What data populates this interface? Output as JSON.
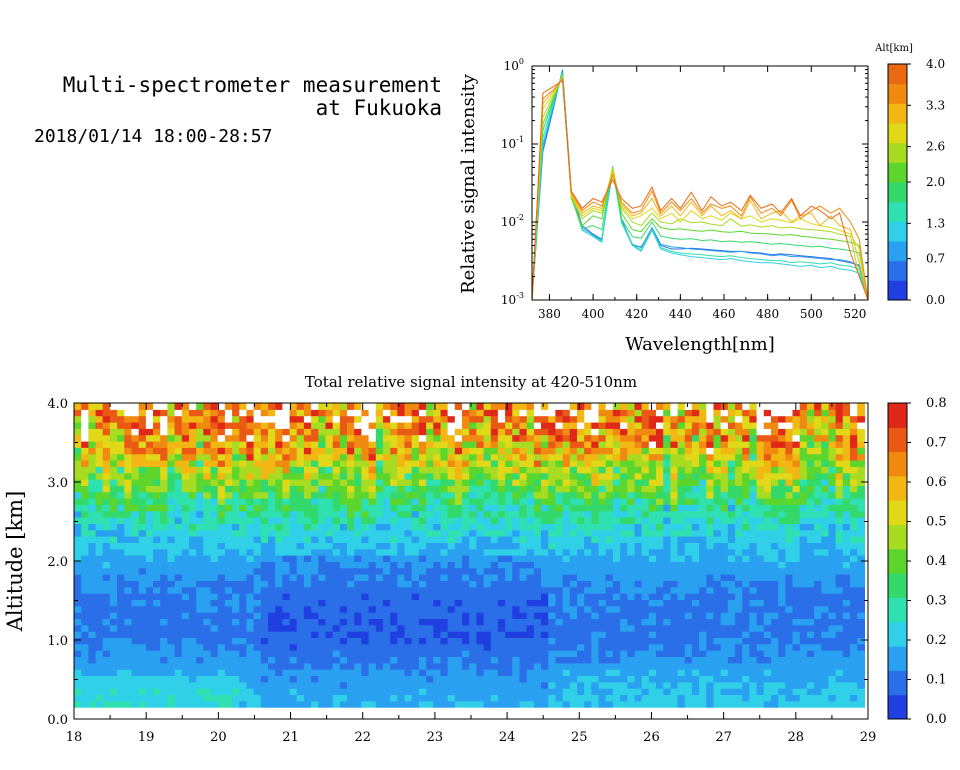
{
  "header": {
    "title_line1": "Multi-spectrometer measurement",
    "title_line2": "at Fukuoka",
    "date_range": "2018/01/14 18:00-28:57"
  },
  "colors": {
    "colorscale": [
      "#1f3fe0",
      "#2a6fe8",
      "#2aa0f0",
      "#30d0e8",
      "#2fe0b0",
      "#33d96a",
      "#5cd62c",
      "#a8dc22",
      "#e0d818",
      "#f2b712",
      "#f08a10",
      "#ea5a14",
      "#e02818"
    ]
  },
  "chart_data": [
    {
      "type": "line",
      "xlabel": "Wavelength[nm]",
      "ylabel": "Relative signal intensity",
      "yscale": "log",
      "xlim": [
        372,
        526
      ],
      "ylim": [
        0.001,
        1
      ],
      "xticks": [
        "380",
        "400",
        "420",
        "440",
        "460",
        "480",
        "500",
        "520"
      ],
      "yticks": [
        "10^-3",
        "10^-2",
        "10^-1",
        "10^0"
      ],
      "colorbar": {
        "title": "Alt[km]",
        "ticks": [
          "0.0",
          "0.7",
          "1.3",
          "2.0",
          "2.6",
          "3.3",
          "4.0"
        ],
        "range": [
          0,
          4
        ]
      },
      "x": [
        372,
        377,
        382,
        386,
        390,
        395,
        400,
        404,
        409,
        413,
        418,
        422,
        427,
        431,
        436,
        440,
        445,
        450,
        454,
        459,
        463,
        468,
        472,
        477,
        482,
        486,
        491,
        495,
        500,
        504,
        509,
        513,
        518,
        522,
        526
      ],
      "series": [
        {
          "altitude": 0.3,
          "color": "#2a6fe8",
          "values": [
            0.001,
            0.08,
            0.3,
            0.9,
            0.025,
            0.009,
            0.007,
            0.006,
            0.045,
            0.011,
            0.005,
            0.0048,
            0.008,
            0.005,
            0.0045,
            0.0045,
            0.0046,
            0.0045,
            0.0044,
            0.0043,
            0.0042,
            0.0042,
            0.0041,
            0.004,
            0.0038,
            0.0039,
            0.0038,
            0.0037,
            0.0036,
            0.0035,
            0.0034,
            0.0032,
            0.003,
            0.0028,
            0.001
          ]
        },
        {
          "altitude": 0.6,
          "color": "#2aa0f0",
          "values": [
            0.001,
            0.09,
            0.32,
            0.85,
            0.024,
            0.0085,
            0.0068,
            0.0058,
            0.048,
            0.0105,
            0.0052,
            0.0047,
            0.0085,
            0.0052,
            0.0048,
            0.0047,
            0.0045,
            0.0044,
            0.0043,
            0.0042,
            0.0041,
            0.0042,
            0.004,
            0.0039,
            0.0037,
            0.0038,
            0.0036,
            0.0036,
            0.0035,
            0.0034,
            0.0033,
            0.0033,
            0.0031,
            0.0027,
            0.001
          ]
        },
        {
          "altitude": 1.0,
          "color": "#30d0e8",
          "values": [
            0.001,
            0.1,
            0.34,
            0.82,
            0.023,
            0.008,
            0.0065,
            0.0055,
            0.05,
            0.01,
            0.005,
            0.0042,
            0.0078,
            0.0045,
            0.004,
            0.0038,
            0.0036,
            0.0035,
            0.0034,
            0.0033,
            0.0034,
            0.0032,
            0.0031,
            0.003,
            0.003,
            0.0029,
            0.0028,
            0.0027,
            0.0028,
            0.0026,
            0.0027,
            0.0025,
            0.0024,
            0.0022,
            0.001
          ]
        },
        {
          "altitude": 1.4,
          "color": "#2fe0b0",
          "values": [
            0.001,
            0.12,
            0.36,
            0.8,
            0.022,
            0.0078,
            0.0066,
            0.0057,
            0.05,
            0.0098,
            0.0051,
            0.0044,
            0.008,
            0.0047,
            0.0042,
            0.004,
            0.0039,
            0.0038,
            0.0037,
            0.0036,
            0.0037,
            0.0035,
            0.0034,
            0.0033,
            0.0032,
            0.0032,
            0.003,
            0.0031,
            0.003,
            0.0029,
            0.003,
            0.0028,
            0.0027,
            0.0025,
            0.001
          ]
        },
        {
          "altitude": 1.8,
          "color": "#33d96a",
          "values": [
            0.001,
            0.15,
            0.38,
            0.78,
            0.021,
            0.0082,
            0.009,
            0.008,
            0.052,
            0.011,
            0.0065,
            0.0062,
            0.01,
            0.0066,
            0.0062,
            0.006,
            0.0061,
            0.0058,
            0.0059,
            0.0056,
            0.0057,
            0.0055,
            0.0056,
            0.0054,
            0.0052,
            0.0053,
            0.0051,
            0.005,
            0.0048,
            0.0049,
            0.0046,
            0.0045,
            0.0043,
            0.004,
            0.001
          ]
        },
        {
          "altitude": 2.2,
          "color": "#5cd62c",
          "values": [
            0.001,
            0.18,
            0.4,
            0.76,
            0.02,
            0.009,
            0.012,
            0.011,
            0.05,
            0.013,
            0.008,
            0.0075,
            0.011,
            0.0085,
            0.008,
            0.0082,
            0.0078,
            0.0076,
            0.0079,
            0.0075,
            0.0074,
            0.0076,
            0.0072,
            0.0071,
            0.007,
            0.0068,
            0.0069,
            0.0066,
            0.0064,
            0.0062,
            0.006,
            0.0058,
            0.0055,
            0.005,
            0.001
          ]
        },
        {
          "altitude": 2.6,
          "color": "#a8dc22",
          "values": [
            0.001,
            0.22,
            0.43,
            0.74,
            0.021,
            0.011,
            0.014,
            0.013,
            0.05,
            0.015,
            0.01,
            0.009,
            0.013,
            0.01,
            0.0095,
            0.011,
            0.0098,
            0.01,
            0.0094,
            0.009,
            0.011,
            0.0088,
            0.0092,
            0.0086,
            0.009,
            0.0084,
            0.0086,
            0.0082,
            0.008,
            0.0078,
            0.0075,
            0.007,
            0.0065,
            0.002,
            0.001
          ]
        },
        {
          "altitude": 3.0,
          "color": "#e0d818",
          "values": [
            0.001,
            0.28,
            0.45,
            0.72,
            0.022,
            0.012,
            0.015,
            0.014,
            0.045,
            0.016,
            0.011,
            0.012,
            0.015,
            0.011,
            0.013,
            0.01,
            0.014,
            0.011,
            0.012,
            0.0105,
            0.013,
            0.011,
            0.012,
            0.01,
            0.011,
            0.0105,
            0.0098,
            0.011,
            0.0095,
            0.009,
            0.0085,
            0.0078,
            0.007,
            0.0045,
            0.001
          ]
        },
        {
          "altitude": 3.4,
          "color": "#f2b712",
          "values": [
            0.001,
            0.33,
            0.48,
            0.7,
            0.023,
            0.013,
            0.016,
            0.015,
            0.042,
            0.017,
            0.012,
            0.013,
            0.02,
            0.012,
            0.016,
            0.012,
            0.018,
            0.012,
            0.016,
            0.012,
            0.014,
            0.011,
            0.019,
            0.011,
            0.013,
            0.014,
            0.01,
            0.012,
            0.013,
            0.009,
            0.012,
            0.009,
            0.008,
            0.003,
            0.001
          ]
        },
        {
          "altitude": 3.7,
          "color": "#f08a10",
          "values": [
            0.001,
            0.38,
            0.5,
            0.68,
            0.024,
            0.014,
            0.018,
            0.016,
            0.04,
            0.018,
            0.013,
            0.014,
            0.025,
            0.013,
            0.018,
            0.014,
            0.02,
            0.013,
            0.017,
            0.015,
            0.016,
            0.012,
            0.021,
            0.013,
            0.015,
            0.012,
            0.019,
            0.011,
            0.014,
            0.016,
            0.013,
            0.015,
            0.01,
            0.006,
            0.001
          ]
        },
        {
          "altitude": 3.95,
          "color": "#ea6a14",
          "values": [
            0.001,
            0.45,
            0.55,
            0.65,
            0.025,
            0.015,
            0.02,
            0.018,
            0.035,
            0.02,
            0.015,
            0.016,
            0.028,
            0.014,
            0.02,
            0.015,
            0.024,
            0.014,
            0.021,
            0.016,
            0.018,
            0.014,
            0.022,
            0.015,
            0.017,
            0.013,
            0.02,
            0.012,
            0.016,
            0.014,
            0.011,
            0.013,
            0.004,
            0.002,
            0.001
          ]
        }
      ]
    },
    {
      "type": "heatmap",
      "title": "Total relative signal intensity at 420-510nm",
      "ylabel": "Altitude [km]",
      "xlim": [
        18,
        29
      ],
      "ylim": [
        0,
        4
      ],
      "xticks": [
        "18",
        "19",
        "20",
        "21",
        "22",
        "23",
        "24",
        "25",
        "26",
        "27",
        "28",
        "29"
      ],
      "yticks": [
        "0.0",
        "1.0",
        "2.0",
        "3.0",
        "4.0"
      ],
      "data_x_range": [
        18,
        28.95
      ],
      "data_y_range": [
        0.15,
        4.0
      ],
      "colorbar": {
        "ticks": [
          "0.0",
          "0.1",
          "0.2",
          "0.3",
          "0.4",
          "0.5",
          "0.6",
          "0.7",
          "0.8"
        ],
        "range": [
          0,
          0.8
        ]
      },
      "saturation_color": "#ffffff",
      "description_profile": {
        "altitude_km": [
          0.2,
          0.5,
          1.0,
          1.5,
          2.0,
          2.5,
          3.0,
          3.5,
          4.0
        ],
        "typical_value": [
          0.2,
          0.17,
          0.1,
          0.11,
          0.17,
          0.26,
          0.42,
          0.6,
          0.75
        ]
      }
    }
  ]
}
